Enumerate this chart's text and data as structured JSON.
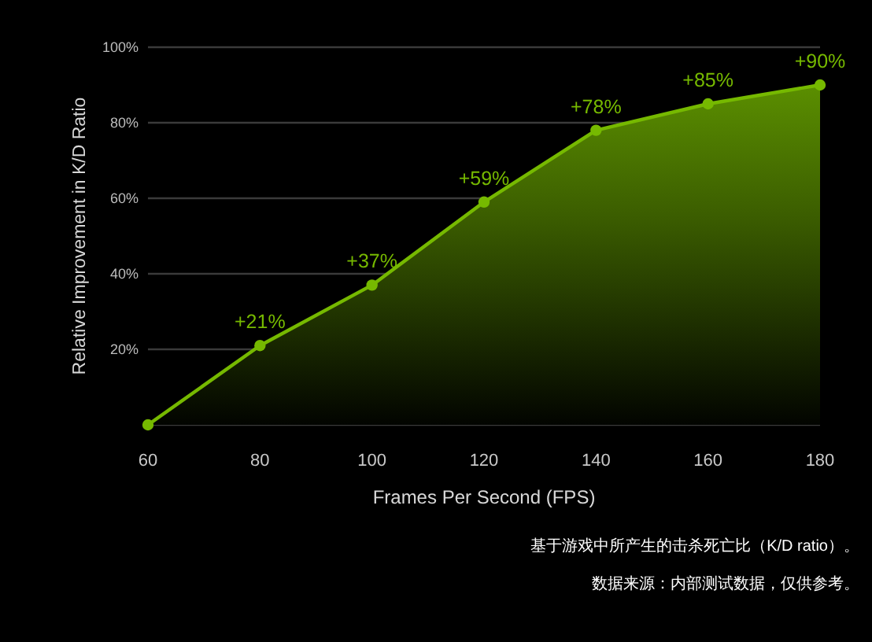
{
  "chart_data": {
    "type": "area",
    "xlabel": "Frames Per Second (FPS)",
    "ylabel": "Relative Improvement in K/D Ratio",
    "x": [
      60,
      80,
      100,
      120,
      140,
      160,
      180
    ],
    "values": [
      0,
      21,
      37,
      59,
      78,
      85,
      90
    ],
    "value_labels": [
      null,
      "+21%",
      "+37%",
      "+59%",
      "+78%",
      "+85%",
      "+90%"
    ],
    "color": "#76b900",
    "marker": "circle",
    "line_style": "solid",
    "grid": "y",
    "xlim": [
      60,
      180
    ],
    "xticks": [
      60,
      80,
      100,
      120,
      140,
      160,
      180
    ],
    "ylim": [
      0,
      100
    ],
    "yticks": [
      {
        "value": 0,
        "label": null
      },
      {
        "value": 20,
        "label": "20%"
      },
      {
        "value": 40,
        "label": "40%"
      },
      {
        "value": 60,
        "label": "60%"
      },
      {
        "value": 80,
        "label": "80%"
      },
      {
        "value": 100,
        "label": "100%"
      }
    ],
    "annotations": [
      "基于游戏中所产生的击杀死亡比（K/D ratio）。",
      "数据来源：内部测试数据，仅供参考。"
    ]
  }
}
